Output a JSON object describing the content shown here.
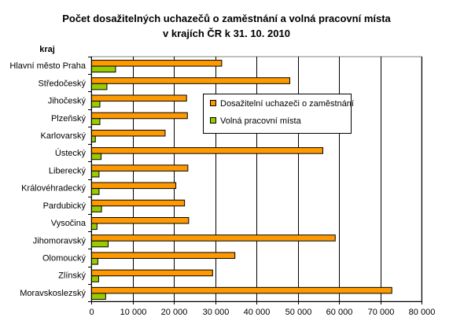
{
  "chart_data": {
    "type": "bar",
    "orientation": "horizontal",
    "title": [
      "Počet dosažitelných uchazečů o zaměstnání a volná pracovní místa",
      "v krajích ČR k 31. 10. 2010"
    ],
    "category_header": "kraj",
    "categories": [
      "Hlavní město Praha",
      "Středočeský",
      "Jihočeský",
      "Plzeňský",
      "Karlovarský",
      "Ústecký",
      "Liberecký",
      "Královéhradecký",
      "Pardubický",
      "Vysočina",
      "Jihomoravský",
      "Olomoucký",
      "Zlínský",
      "Moravskoslezský"
    ],
    "series": [
      {
        "name": "Dosažitelní uchazeči o zaměstnání",
        "color": "#ff9900",
        "values": [
          31500,
          48000,
          23000,
          23200,
          17800,
          56000,
          23300,
          20400,
          22500,
          23500,
          59000,
          34700,
          29300,
          72700
        ]
      },
      {
        "name": "Volná pracovní místa",
        "color": "#99cc00",
        "values": [
          5800,
          3700,
          2000,
          2000,
          900,
          2300,
          1800,
          1800,
          2400,
          1300,
          4000,
          1500,
          1700,
          3400
        ]
      }
    ],
    "xlim": [
      0,
      80000
    ],
    "xticks": [
      0,
      10000,
      20000,
      30000,
      40000,
      50000,
      60000,
      70000,
      80000
    ],
    "xtick_labels": [
      "0",
      "10 000",
      "20 000",
      "30 000",
      "40 000",
      "50 000",
      "60 000",
      "70 000",
      "80 000"
    ],
    "grid": true,
    "legend_position": "upper-right, inside plot"
  }
}
